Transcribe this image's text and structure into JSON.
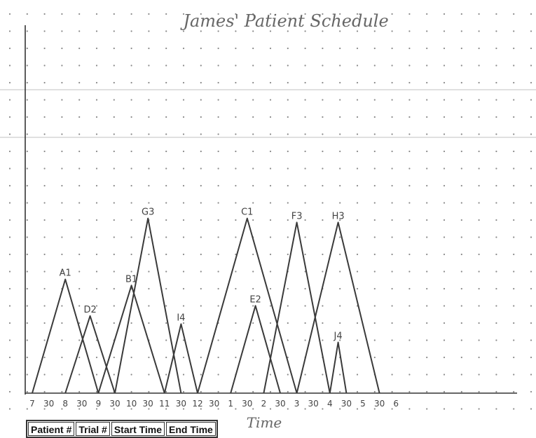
{
  "chart_data": {
    "type": "line",
    "title": "James' Patient Schedule",
    "xlabel": "Time",
    "ylabel": "",
    "x_tick_labels": [
      "7",
      "30",
      "8",
      "30",
      "9",
      "30",
      "10",
      "30",
      "11",
      "30",
      "12",
      "30",
      "1",
      "30",
      "2",
      "30",
      "3",
      "30",
      "4",
      "30",
      "5",
      "30",
      "6"
    ],
    "xlim": [
      "7:00",
      "6:00"
    ],
    "series": [
      {
        "name": "A1",
        "start": "7:00",
        "end": "9:00",
        "peak": 0.56
      },
      {
        "name": "D2",
        "start": "8:00",
        "end": "9:30",
        "peak": 0.38
      },
      {
        "name": "B1",
        "start": "9:00",
        "end": "11:00",
        "peak": 0.53
      },
      {
        "name": "G3",
        "start": "9:30",
        "end": "11:30",
        "peak": 0.86
      },
      {
        "name": "I4",
        "start": "11:00",
        "end": "12:00",
        "peak": 0.34
      },
      {
        "name": "C1",
        "start": "12:00",
        "end": "3:00",
        "peak": 0.86
      },
      {
        "name": "E2",
        "start": "1:00",
        "end": "2:30",
        "peak": 0.43
      },
      {
        "name": "F3",
        "start": "2:00",
        "end": "4:00",
        "peak": 0.84
      },
      {
        "name": "H3",
        "start": "3:00",
        "end": "5:30",
        "peak": 0.84
      },
      {
        "name": "J4",
        "start": "4:00",
        "end": "4:30",
        "peak": 0.25
      }
    ],
    "grid": "dot-grid",
    "line_color": "#3a3a3a"
  },
  "table": {
    "headers": [
      "Patient #",
      "Trial #",
      "Start Time",
      "End Time"
    ]
  }
}
